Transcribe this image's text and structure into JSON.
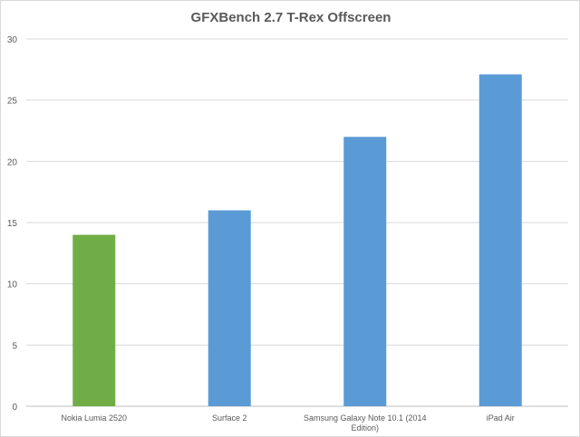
{
  "chart_data": {
    "type": "bar",
    "title": "GFXBench 2.7 T-Rex Offscreen",
    "categories": [
      "Nokia Lumia 2520",
      "Surface 2",
      "Samsung Galaxy Note 10.1 (2014 Edition)",
      "iPad Air"
    ],
    "category_lines": [
      [
        "Nokia Lumia 2520"
      ],
      [
        "Surface 2"
      ],
      [
        "Samsung Galaxy Note 10.1 (2014",
        "Edition)"
      ],
      [
        "iPad Air"
      ]
    ],
    "values": [
      14,
      16,
      22,
      27.1
    ],
    "bar_colors": [
      "#70ad47",
      "#5b9bd5",
      "#5b9bd5",
      "#5b9bd5"
    ],
    "ylim": [
      0,
      30
    ],
    "yticks": [
      0,
      5,
      10,
      15,
      20,
      25,
      30
    ],
    "grid": true,
    "xlabel": "",
    "ylabel": ""
  }
}
